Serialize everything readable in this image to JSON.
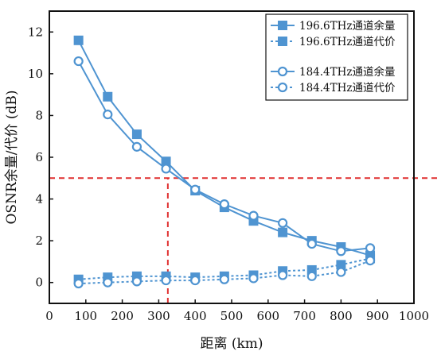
{
  "colors": {
    "series": "#4f94d1",
    "reference": "#e03030",
    "axis": "#111111"
  },
  "chart_data": {
    "type": "line",
    "xlabel": "距离 (km)",
    "ylabel": "OSNR余量/代价 (dB)",
    "xlim": [
      0,
      1000
    ],
    "ylim": [
      -1,
      13
    ],
    "xticks": [
      0,
      100,
      200,
      300,
      400,
      500,
      600,
      700,
      800,
      900,
      1000
    ],
    "yticks": [
      0,
      2,
      4,
      6,
      8,
      10,
      12
    ],
    "grid": false,
    "legend_position": "top-right",
    "series": [
      {
        "name": "196.6THz通道余量",
        "marker": "square-filled",
        "line": "solid",
        "x": [
          80,
          160,
          240,
          320,
          400,
          480,
          560,
          640,
          720,
          800,
          880
        ],
        "y": [
          11.6,
          8.9,
          7.1,
          5.8,
          4.4,
          3.6,
          2.95,
          2.4,
          2.0,
          1.7,
          1.3
        ]
      },
      {
        "name": "196.6THz通道代价",
        "marker": "square-filled",
        "line": "dotted",
        "x": [
          80,
          160,
          240,
          320,
          400,
          480,
          560,
          640,
          720,
          800,
          880
        ],
        "y": [
          0.15,
          0.25,
          0.3,
          0.3,
          0.25,
          0.3,
          0.35,
          0.55,
          0.6,
          0.85,
          1.15
        ]
      },
      {
        "name": "184.4THz通道余量",
        "marker": "circle-open",
        "line": "solid",
        "x": [
          80,
          160,
          240,
          320,
          400,
          480,
          560,
          640,
          720,
          800,
          880
        ],
        "y": [
          10.6,
          8.05,
          6.5,
          5.45,
          4.45,
          3.75,
          3.2,
          2.85,
          1.85,
          1.5,
          1.65
        ]
      },
      {
        "name": "184.4THz通道代价",
        "marker": "circle-open",
        "line": "dotted",
        "x": [
          80,
          160,
          240,
          320,
          400,
          480,
          560,
          640,
          720,
          800,
          880
        ],
        "y": [
          -0.05,
          0.0,
          0.05,
          0.1,
          0.1,
          0.15,
          0.2,
          0.35,
          0.3,
          0.5,
          1.05
        ]
      }
    ],
    "reference_lines": [
      {
        "orientation": "horizontal",
        "value": 5,
        "style": "dashed"
      },
      {
        "orientation": "vertical",
        "value": 325,
        "from": -1,
        "to": 5,
        "style": "dashed"
      }
    ]
  }
}
